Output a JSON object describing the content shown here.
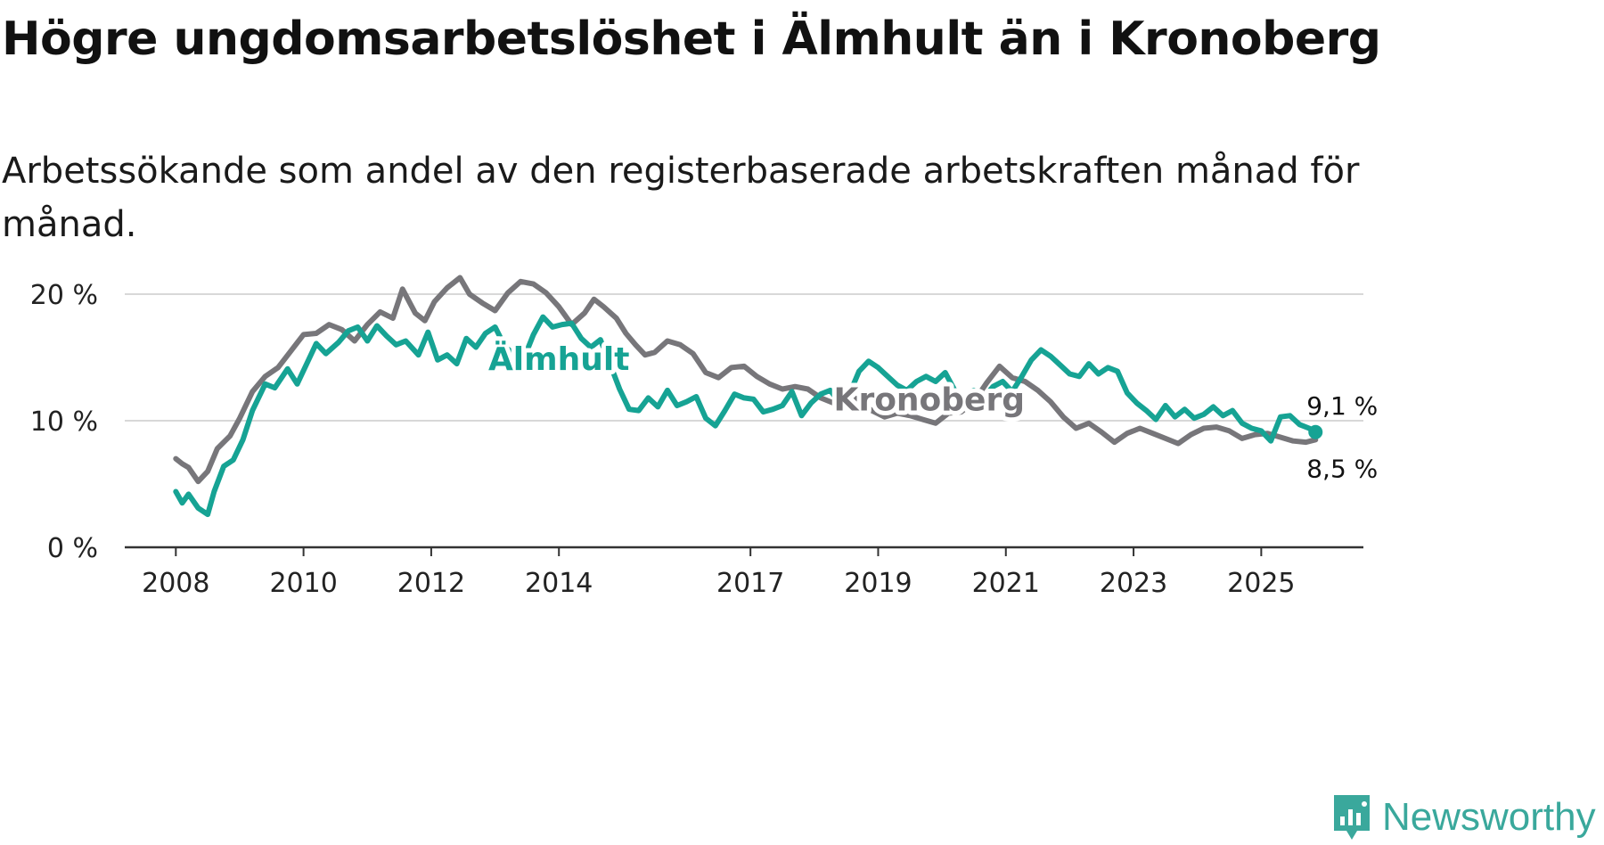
{
  "title": "Högre ungdomsarbetslöshet i Älmhult än i Kronoberg",
  "subtitle": "Arbetssökande som andel av den registerbaserade arbetskraften månad för månad.",
  "brand": "Newsworthy",
  "colors": {
    "almhult": "#16a394",
    "kronoberg": "#77767a",
    "grid": "#d8d8d8",
    "axis": "#333333",
    "text": "#222222"
  },
  "chart_data": {
    "type": "line",
    "title": "Högre ungdomsarbetslöshet i Älmhult än i Kronoberg",
    "xlabel": "",
    "ylabel": "",
    "ylim": [
      0,
      20
    ],
    "xlim": [
      2007.2,
      2026.6
    ],
    "y_ticks": [
      {
        "value": 0,
        "label": "0 %"
      },
      {
        "value": 10,
        "label": "10 %"
      },
      {
        "value": 20,
        "label": "20 %"
      }
    ],
    "x_ticks": [
      {
        "value": 2008,
        "label": "2008"
      },
      {
        "value": 2010,
        "label": "2010"
      },
      {
        "value": 2012,
        "label": "2012"
      },
      {
        "value": 2014,
        "label": "2014"
      },
      {
        "value": 2017,
        "label": "2017"
      },
      {
        "value": 2019,
        "label": "2019"
      },
      {
        "value": 2021,
        "label": "2021"
      },
      {
        "value": 2023,
        "label": "2023"
      },
      {
        "value": 2025,
        "label": "2025"
      }
    ],
    "series": [
      {
        "name": "Kronoberg",
        "label": "Kronoberg",
        "label_pos": [
          2019.8,
          10.8
        ],
        "end_label": "8,5 %",
        "points": [
          [
            2008.0,
            7.0
          ],
          [
            2008.1,
            6.6
          ],
          [
            2008.2,
            6.3
          ],
          [
            2008.35,
            5.2
          ],
          [
            2008.5,
            6.0
          ],
          [
            2008.65,
            7.8
          ],
          [
            2008.85,
            8.8
          ],
          [
            2009.0,
            10.2
          ],
          [
            2009.2,
            12.3
          ],
          [
            2009.4,
            13.5
          ],
          [
            2009.6,
            14.2
          ],
          [
            2009.8,
            15.5
          ],
          [
            2010.0,
            16.8
          ],
          [
            2010.2,
            16.9
          ],
          [
            2010.4,
            17.6
          ],
          [
            2010.6,
            17.2
          ],
          [
            2010.8,
            16.3
          ],
          [
            2011.0,
            17.6
          ],
          [
            2011.2,
            18.6
          ],
          [
            2011.4,
            18.1
          ],
          [
            2011.55,
            20.4
          ],
          [
            2011.75,
            18.5
          ],
          [
            2011.9,
            17.9
          ],
          [
            2012.05,
            19.4
          ],
          [
            2012.25,
            20.5
          ],
          [
            2012.45,
            21.3
          ],
          [
            2012.6,
            20.0
          ],
          [
            2012.8,
            19.3
          ],
          [
            2013.0,
            18.7
          ],
          [
            2013.2,
            20.1
          ],
          [
            2013.4,
            21.0
          ],
          [
            2013.6,
            20.8
          ],
          [
            2013.8,
            20.1
          ],
          [
            2014.0,
            19.0
          ],
          [
            2014.2,
            17.6
          ],
          [
            2014.4,
            18.5
          ],
          [
            2014.55,
            19.6
          ],
          [
            2014.7,
            19.0
          ],
          [
            2014.9,
            18.1
          ],
          [
            2015.05,
            16.9
          ],
          [
            2015.2,
            16.0
          ],
          [
            2015.35,
            15.2
          ],
          [
            2015.5,
            15.4
          ],
          [
            2015.7,
            16.3
          ],
          [
            2015.9,
            16.0
          ],
          [
            2016.1,
            15.3
          ],
          [
            2016.3,
            13.8
          ],
          [
            2016.5,
            13.4
          ],
          [
            2016.7,
            14.2
          ],
          [
            2016.9,
            14.3
          ],
          [
            2017.1,
            13.5
          ],
          [
            2017.3,
            12.9
          ],
          [
            2017.5,
            12.5
          ],
          [
            2017.7,
            12.7
          ],
          [
            2017.9,
            12.5
          ],
          [
            2018.1,
            11.8
          ],
          [
            2018.3,
            11.4
          ],
          [
            2018.5,
            12.2
          ],
          [
            2018.7,
            11.6
          ],
          [
            2018.9,
            10.8
          ],
          [
            2019.1,
            10.3
          ],
          [
            2019.3,
            10.6
          ],
          [
            2019.5,
            10.4
          ],
          [
            2019.7,
            10.1
          ],
          [
            2019.9,
            9.8
          ],
          [
            2020.1,
            10.6
          ],
          [
            2020.3,
            10.7
          ],
          [
            2020.5,
            11.5
          ],
          [
            2020.7,
            13.0
          ],
          [
            2020.9,
            14.3
          ],
          [
            2021.1,
            13.4
          ],
          [
            2021.3,
            13.1
          ],
          [
            2021.5,
            12.4
          ],
          [
            2021.7,
            11.5
          ],
          [
            2021.9,
            10.3
          ],
          [
            2022.1,
            9.4
          ],
          [
            2022.3,
            9.8
          ],
          [
            2022.5,
            9.1
          ],
          [
            2022.7,
            8.3
          ],
          [
            2022.9,
            9.0
          ],
          [
            2023.1,
            9.4
          ],
          [
            2023.3,
            9.0
          ],
          [
            2023.5,
            8.6
          ],
          [
            2023.7,
            8.2
          ],
          [
            2023.9,
            8.9
          ],
          [
            2024.1,
            9.4
          ],
          [
            2024.3,
            9.5
          ],
          [
            2024.5,
            9.2
          ],
          [
            2024.7,
            8.6
          ],
          [
            2024.9,
            8.9
          ],
          [
            2025.1,
            9.0
          ],
          [
            2025.3,
            8.7
          ],
          [
            2025.5,
            8.4
          ],
          [
            2025.7,
            8.3
          ],
          [
            2025.85,
            8.5
          ]
        ]
      },
      {
        "name": "Älmhult",
        "label": "Älmhult",
        "label_pos": [
          2014.0,
          14.0
        ],
        "end_label": "9,1 %",
        "points": [
          [
            2008.0,
            4.4
          ],
          [
            2008.1,
            3.5
          ],
          [
            2008.2,
            4.2
          ],
          [
            2008.35,
            3.1
          ],
          [
            2008.5,
            2.6
          ],
          [
            2008.6,
            4.4
          ],
          [
            2008.75,
            6.4
          ],
          [
            2008.9,
            6.9
          ],
          [
            2009.05,
            8.5
          ],
          [
            2009.2,
            10.8
          ],
          [
            2009.4,
            12.9
          ],
          [
            2009.55,
            12.6
          ],
          [
            2009.75,
            14.1
          ],
          [
            2009.9,
            12.9
          ],
          [
            2010.05,
            14.5
          ],
          [
            2010.2,
            16.1
          ],
          [
            2010.35,
            15.3
          ],
          [
            2010.55,
            16.2
          ],
          [
            2010.7,
            17.1
          ],
          [
            2010.85,
            17.4
          ],
          [
            2011.0,
            16.3
          ],
          [
            2011.15,
            17.5
          ],
          [
            2011.3,
            16.7
          ],
          [
            2011.45,
            16.0
          ],
          [
            2011.6,
            16.3
          ],
          [
            2011.8,
            15.2
          ],
          [
            2011.95,
            17.0
          ],
          [
            2012.1,
            14.8
          ],
          [
            2012.25,
            15.2
          ],
          [
            2012.4,
            14.5
          ],
          [
            2012.55,
            16.5
          ],
          [
            2012.7,
            15.8
          ],
          [
            2012.85,
            16.9
          ],
          [
            2013.0,
            17.4
          ],
          [
            2013.15,
            15.9
          ],
          [
            2013.3,
            15.2
          ],
          [
            2013.45,
            14.9
          ],
          [
            2013.6,
            16.8
          ],
          [
            2013.75,
            18.2
          ],
          [
            2013.9,
            17.4
          ],
          [
            2014.05,
            17.6
          ],
          [
            2014.2,
            17.7
          ],
          [
            2014.35,
            16.5
          ],
          [
            2014.5,
            15.8
          ],
          [
            2014.65,
            16.4
          ],
          [
            2014.8,
            14.5
          ],
          [
            2014.95,
            12.5
          ],
          [
            2015.1,
            10.9
          ],
          [
            2015.25,
            10.8
          ],
          [
            2015.4,
            11.8
          ],
          [
            2015.55,
            11.1
          ],
          [
            2015.7,
            12.4
          ],
          [
            2015.85,
            11.2
          ],
          [
            2016.0,
            11.5
          ],
          [
            2016.15,
            11.9
          ],
          [
            2016.3,
            10.2
          ],
          [
            2016.45,
            9.6
          ],
          [
            2016.6,
            10.8
          ],
          [
            2016.75,
            12.1
          ],
          [
            2016.9,
            11.8
          ],
          [
            2017.05,
            11.7
          ],
          [
            2017.2,
            10.7
          ],
          [
            2017.35,
            10.9
          ],
          [
            2017.5,
            11.2
          ],
          [
            2017.65,
            12.3
          ],
          [
            2017.8,
            10.4
          ],
          [
            2017.95,
            11.4
          ],
          [
            2018.1,
            12.1
          ],
          [
            2018.25,
            12.4
          ],
          [
            2018.4,
            11.4
          ],
          [
            2018.55,
            12.1
          ],
          [
            2018.7,
            13.9
          ],
          [
            2018.85,
            14.7
          ],
          [
            2019.0,
            14.2
          ],
          [
            2019.15,
            13.5
          ],
          [
            2019.3,
            12.8
          ],
          [
            2019.45,
            12.4
          ],
          [
            2019.6,
            13.1
          ],
          [
            2019.75,
            13.5
          ],
          [
            2019.9,
            13.1
          ],
          [
            2020.05,
            13.8
          ],
          [
            2020.2,
            12.4
          ],
          [
            2020.35,
            11.9
          ],
          [
            2020.5,
            12.4
          ],
          [
            2020.65,
            11.8
          ],
          [
            2020.8,
            12.7
          ],
          [
            2020.95,
            13.1
          ],
          [
            2021.1,
            12.3
          ],
          [
            2021.25,
            13.5
          ],
          [
            2021.4,
            14.8
          ],
          [
            2021.55,
            15.6
          ],
          [
            2021.7,
            15.1
          ],
          [
            2021.85,
            14.4
          ],
          [
            2022.0,
            13.7
          ],
          [
            2022.15,
            13.5
          ],
          [
            2022.3,
            14.5
          ],
          [
            2022.45,
            13.7
          ],
          [
            2022.6,
            14.2
          ],
          [
            2022.75,
            13.9
          ],
          [
            2022.9,
            12.2
          ],
          [
            2023.05,
            11.4
          ],
          [
            2023.2,
            10.8
          ],
          [
            2023.35,
            10.1
          ],
          [
            2023.5,
            11.2
          ],
          [
            2023.65,
            10.3
          ],
          [
            2023.8,
            10.9
          ],
          [
            2023.95,
            10.2
          ],
          [
            2024.1,
            10.5
          ],
          [
            2024.25,
            11.1
          ],
          [
            2024.4,
            10.4
          ],
          [
            2024.55,
            10.8
          ],
          [
            2024.7,
            9.8
          ],
          [
            2024.85,
            9.4
          ],
          [
            2025.0,
            9.2
          ],
          [
            2025.15,
            8.4
          ],
          [
            2025.3,
            10.3
          ],
          [
            2025.45,
            10.4
          ],
          [
            2025.6,
            9.7
          ],
          [
            2025.75,
            9.4
          ],
          [
            2025.85,
            9.1
          ]
        ]
      }
    ]
  }
}
